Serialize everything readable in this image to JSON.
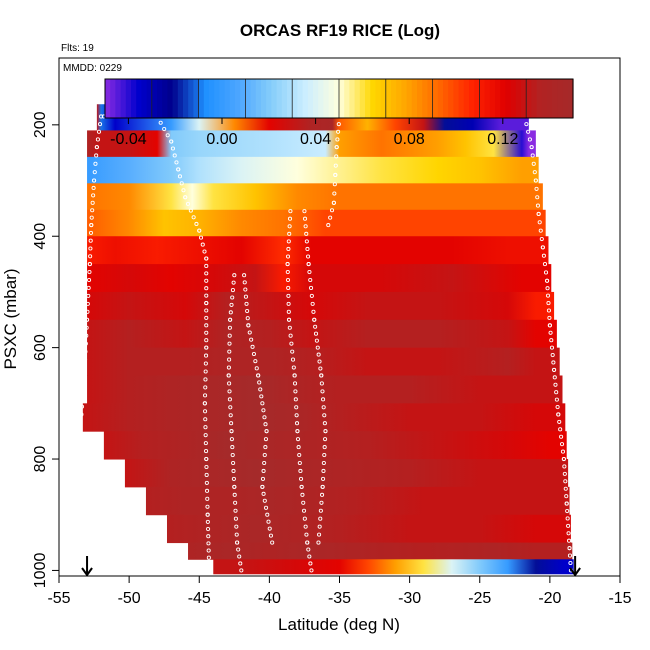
{
  "chart_data": {
    "type": "heatmap",
    "title": "ORCAS RF19 RICE (Log)",
    "flights_label": "Flts: 19",
    "date_label": "MMDD: 0229",
    "xlabel": "Latitude (deg N)",
    "ylabel": "PSXC (mbar)",
    "xlim": [
      -55,
      -15
    ],
    "ylim": [
      1010,
      80
    ],
    "x_ticks": [
      -55,
      -50,
      -45,
      -40,
      -35,
      -30,
      -25,
      -20,
      -15
    ],
    "y_ticks": [
      200,
      400,
      600,
      800,
      1000
    ],
    "colorbar": {
      "range": [
        -0.05,
        0.15
      ],
      "ticks": [
        -0.04,
        0.0,
        0.04,
        0.08,
        0.12
      ],
      "tick_labels": [
        "-0.04",
        "0.00",
        "0.04",
        "0.08",
        "0.12"
      ],
      "colors": [
        "#8a2be2",
        "#0000cd",
        "#00008b",
        "#1e90ff",
        "#4da6ff",
        "#87cefa",
        "#cceeff",
        "#ffffdd",
        "#ffd700",
        "#ffa500",
        "#ff6600",
        "#ff2200",
        "#e00000",
        "#b22222",
        "#a52a2a"
      ]
    },
    "bands": [
      {
        "p": 185,
        "x0": -52.3,
        "x1": -21.5,
        "segments": [
          [
            -52.3,
            0.13
          ],
          [
            -52.0,
            -0.01
          ],
          [
            -51.0,
            -0.035
          ],
          [
            -47.0,
            0.0
          ],
          [
            -45.0,
            0.04
          ],
          [
            -42.5,
            0.085
          ],
          [
            -40.0,
            0.12
          ],
          [
            -37.0,
            0.14
          ],
          [
            -35.5,
            0.145
          ],
          [
            -35.0,
            0.095
          ],
          [
            -33.0,
            0.075
          ],
          [
            -31.0,
            0.1
          ],
          [
            -29.0,
            0.13
          ],
          [
            -27.5,
            -0.02
          ],
          [
            -25.5,
            -0.03
          ],
          [
            -23.5,
            -0.045
          ]
        ]
      },
      {
        "p": 235,
        "x0": -53.0,
        "x1": -21.0,
        "segments": [
          [
            -53.0,
            0.14
          ],
          [
            -52.0,
            0.13
          ],
          [
            -50.0,
            0.13
          ],
          [
            -48.0,
            0.12
          ],
          [
            -47.0,
            0.02
          ],
          [
            -45.0,
            0.025
          ],
          [
            -40.0,
            0.03
          ],
          [
            -36.0,
            0.035
          ],
          [
            -35.0,
            0.08
          ],
          [
            -32.0,
            0.09
          ],
          [
            -28.0,
            0.08
          ],
          [
            -26.0,
            0.07
          ],
          [
            -24.0,
            0.06
          ],
          [
            -22.0,
            -0.04
          ],
          [
            -21.5,
            -0.05
          ]
        ]
      },
      {
        "p": 280,
        "x0": -53.0,
        "x1": -20.8,
        "segments": [
          [
            -53.0,
            0.0
          ],
          [
            -50.0,
            0.01
          ],
          [
            -47.0,
            0.02
          ],
          [
            -45.0,
            0.03
          ],
          [
            -42.0,
            0.04
          ],
          [
            -38.0,
            0.05
          ],
          [
            -35.0,
            0.055
          ],
          [
            -32.0,
            0.06
          ],
          [
            -28.0,
            0.065
          ],
          [
            -25.0,
            0.07
          ],
          [
            -22.0,
            0.08
          ]
        ]
      },
      {
        "p": 330,
        "x0": -53.0,
        "x1": -20.5,
        "segments": [
          [
            -53.0,
            0.09
          ],
          [
            -50.0,
            0.085
          ],
          [
            -47.0,
            0.06
          ],
          [
            -45.5,
            0.05
          ],
          [
            -44.0,
            0.06
          ],
          [
            -41.0,
            0.07
          ],
          [
            -38.0,
            0.085
          ],
          [
            -35.0,
            0.09
          ],
          [
            -30.0,
            0.09
          ],
          [
            -25.0,
            0.09
          ],
          [
            -21.5,
            0.09
          ]
        ]
      },
      {
        "p": 375,
        "x0": -53.0,
        "x1": -20.3,
        "segments": [
          [
            -53.0,
            0.095
          ],
          [
            -50.0,
            0.085
          ],
          [
            -47.5,
            0.07
          ],
          [
            -45.0,
            0.075
          ],
          [
            -42.0,
            0.085
          ],
          [
            -39.0,
            0.09
          ],
          [
            -36.0,
            0.1
          ],
          [
            -30.0,
            0.1
          ],
          [
            -25.0,
            0.1
          ],
          [
            -21.0,
            0.1
          ]
        ]
      },
      {
        "p": 425,
        "x0": -53.0,
        "x1": -20.1,
        "segments": [
          [
            -53.0,
            0.11
          ],
          [
            -51.0,
            0.115
          ],
          [
            -48.0,
            0.11
          ],
          [
            -45.0,
            0.115
          ],
          [
            -42.0,
            0.12
          ],
          [
            -39.0,
            0.105
          ],
          [
            -37.0,
            0.12
          ],
          [
            -32.0,
            0.12
          ],
          [
            -27.0,
            0.12
          ],
          [
            -23.0,
            0.115
          ]
        ]
      },
      {
        "p": 475,
        "x0": -53.0,
        "x1": -19.9,
        "segments": [
          [
            -53.0,
            0.12
          ],
          [
            -50.0,
            0.125
          ],
          [
            -47.0,
            0.12
          ],
          [
            -44.0,
            0.125
          ],
          [
            -41.0,
            0.13
          ],
          [
            -39.0,
            0.11
          ],
          [
            -37.0,
            0.125
          ],
          [
            -32.0,
            0.125
          ],
          [
            -27.0,
            0.13
          ],
          [
            -22.0,
            0.12
          ]
        ]
      },
      {
        "p": 525,
        "x0": -53.0,
        "x1": -19.7,
        "segments": [
          [
            -53.0,
            0.125
          ],
          [
            -50.0,
            0.13
          ],
          [
            -46.0,
            0.125
          ],
          [
            -43.0,
            0.135
          ],
          [
            -40.0,
            0.13
          ],
          [
            -37.0,
            0.125
          ],
          [
            -33.0,
            0.13
          ],
          [
            -28.0,
            0.13
          ],
          [
            -23.0,
            0.125
          ],
          [
            -21.0,
            0.11
          ]
        ]
      },
      {
        "p": 575,
        "x0": -53.0,
        "x1": -19.5,
        "segments": [
          [
            -53.0,
            0.13
          ],
          [
            -50.0,
            0.135
          ],
          [
            -46.0,
            0.13
          ],
          [
            -43.0,
            0.14
          ],
          [
            -40.0,
            0.135
          ],
          [
            -37.0,
            0.13
          ],
          [
            -33.0,
            0.135
          ],
          [
            -28.0,
            0.135
          ],
          [
            -23.0,
            0.13
          ],
          [
            -21.0,
            0.12
          ]
        ]
      },
      {
        "p": 625,
        "x0": -53.0,
        "x1": -19.3,
        "segments": [
          [
            -53.0,
            0.13
          ],
          [
            -50.0,
            0.135
          ],
          [
            -46.0,
            0.135
          ],
          [
            -43.0,
            0.14
          ],
          [
            -40.0,
            0.14
          ],
          [
            -37.0,
            0.135
          ],
          [
            -33.0,
            0.13
          ],
          [
            -28.0,
            0.13
          ],
          [
            -23.0,
            0.135
          ],
          [
            -21.0,
            0.13
          ]
        ]
      },
      {
        "p": 675,
        "x0": -53.0,
        "x1": -19.1,
        "segments": [
          [
            -53.0,
            0.13
          ],
          [
            -50.0,
            0.135
          ],
          [
            -47.0,
            0.14
          ],
          [
            -44.0,
            0.145
          ],
          [
            -41.0,
            0.15
          ],
          [
            -38.0,
            0.14
          ],
          [
            -35.0,
            0.135
          ],
          [
            -30.0,
            0.135
          ],
          [
            -25.0,
            0.13
          ],
          [
            -21.0,
            0.13
          ]
        ]
      },
      {
        "p": 725,
        "x0": -53.3,
        "x1": -18.9,
        "segments": [
          [
            -53.3,
            0.13
          ],
          [
            -50.0,
            0.135
          ],
          [
            -47.0,
            0.14
          ],
          [
            -44.0,
            0.145
          ],
          [
            -41.0,
            0.15
          ],
          [
            -38.0,
            0.145
          ],
          [
            -35.0,
            0.135
          ],
          [
            -30.0,
            0.13
          ],
          [
            -25.0,
            0.13
          ],
          [
            -21.0,
            0.125
          ]
        ]
      },
      {
        "p": 775,
        "x0": -51.8,
        "x1": -18.8,
        "segments": [
          [
            -51.8,
            0.13
          ],
          [
            -49.0,
            0.135
          ],
          [
            -46.0,
            0.14
          ],
          [
            -43.0,
            0.15
          ],
          [
            -40.0,
            0.145
          ],
          [
            -37.0,
            0.14
          ],
          [
            -33.0,
            0.135
          ],
          [
            -28.0,
            0.13
          ],
          [
            -23.0,
            0.125
          ],
          [
            -20.0,
            0.12
          ]
        ]
      },
      {
        "p": 825,
        "x0": -50.3,
        "x1": -18.7,
        "segments": [
          [
            -50.3,
            0.13
          ],
          [
            -47.0,
            0.14
          ],
          [
            -44.0,
            0.145
          ],
          [
            -41.0,
            0.15
          ],
          [
            -38.0,
            0.145
          ],
          [
            -35.0,
            0.14
          ],
          [
            -30.0,
            0.135
          ],
          [
            -25.0,
            0.13
          ],
          [
            -21.0,
            0.13
          ]
        ]
      },
      {
        "p": 875,
        "x0": -48.8,
        "x1": -18.6,
        "segments": [
          [
            -48.8,
            0.135
          ],
          [
            -46.0,
            0.14
          ],
          [
            -43.0,
            0.14
          ],
          [
            -40.0,
            0.145
          ],
          [
            -37.0,
            0.14
          ],
          [
            -34.0,
            0.135
          ],
          [
            -29.0,
            0.13
          ],
          [
            -24.0,
            0.13
          ],
          [
            -21.0,
            0.13
          ]
        ]
      },
      {
        "p": 925,
        "x0": -47.3,
        "x1": -18.5,
        "segments": [
          [
            -47.3,
            0.135
          ],
          [
            -44.0,
            0.14
          ],
          [
            -41.0,
            0.145
          ],
          [
            -38.0,
            0.14
          ],
          [
            -35.0,
            0.135
          ],
          [
            -30.0,
            0.13
          ],
          [
            -25.0,
            0.13
          ],
          [
            -21.0,
            0.125
          ]
        ]
      },
      {
        "p": 975,
        "x0": -45.8,
        "x1": -18.4,
        "segments": [
          [
            -45.8,
            0.14
          ],
          [
            -43.0,
            0.145
          ],
          [
            -40.0,
            0.14
          ],
          [
            -37.0,
            0.145
          ],
          [
            -34.0,
            0.14
          ],
          [
            -29.0,
            0.135
          ],
          [
            -24.0,
            0.14
          ],
          [
            -21.0,
            0.135
          ]
        ]
      },
      {
        "p": 985,
        "x0": -44.0,
        "x1": -18.3,
        "segments": [
          [
            -44.0,
            0.13
          ],
          [
            -42.0,
            0.13
          ],
          [
            -38.0,
            0.125
          ],
          [
            -35.0,
            0.12
          ],
          [
            -33.0,
            0.1
          ],
          [
            -31.0,
            0.08
          ],
          [
            -29.0,
            0.06
          ],
          [
            -27.0,
            0.04
          ],
          [
            -25.0,
            0.02
          ],
          [
            -23.0,
            0.0
          ],
          [
            -21.0,
            -0.02
          ],
          [
            -19.0,
            -0.035
          ]
        ]
      }
    ],
    "flight_tracks": [
      {
        "name": "left-descent",
        "points": [
          [
            -52.0,
            185
          ],
          [
            -52.3,
            240
          ],
          [
            -52.5,
            300
          ],
          [
            -52.7,
            380
          ],
          [
            -52.8,
            450
          ],
          [
            -53.0,
            550
          ],
          [
            -53.2,
            650
          ],
          [
            -53.4,
            720
          ]
        ]
      },
      {
        "name": "left-upper-track",
        "points": [
          [
            -51.8,
            185
          ],
          [
            -48.0,
            185
          ],
          [
            -47.0,
            230
          ],
          [
            -46.5,
            280
          ],
          [
            -46.0,
            330
          ],
          [
            -45.0,
            390
          ],
          [
            -44.5,
            440
          ],
          [
            -44.5,
            520
          ],
          [
            -44.5,
            600
          ],
          [
            -44.6,
            700
          ],
          [
            -44.5,
            800
          ],
          [
            -44.4,
            900
          ],
          [
            -44.3,
            990
          ]
        ]
      },
      {
        "name": "middle-track-1",
        "points": [
          [
            -42.5,
            470
          ],
          [
            -42.8,
            550
          ],
          [
            -42.9,
            650
          ],
          [
            -42.7,
            750
          ],
          [
            -42.5,
            850
          ],
          [
            -42.3,
            950
          ],
          [
            -42.0,
            1000
          ]
        ]
      },
      {
        "name": "middle-track-2",
        "points": [
          [
            -41.8,
            470
          ],
          [
            -41.5,
            560
          ],
          [
            -40.8,
            650
          ],
          [
            -40.2,
            750
          ],
          [
            -40.5,
            850
          ],
          [
            -39.8,
            950
          ]
        ]
      },
      {
        "name": "middle-track-3",
        "points": [
          [
            -38.5,
            355
          ],
          [
            -38.7,
            450
          ],
          [
            -38.6,
            550
          ],
          [
            -38.2,
            650
          ],
          [
            -38.0,
            750
          ],
          [
            -37.7,
            850
          ],
          [
            -37.3,
            950
          ],
          [
            -37.0,
            1000
          ]
        ]
      },
      {
        "name": "middle-track-4",
        "points": [
          [
            -37.5,
            355
          ],
          [
            -37.2,
            450
          ],
          [
            -36.8,
            550
          ],
          [
            -36.3,
            650
          ],
          [
            -36.0,
            750
          ],
          [
            -36.2,
            850
          ],
          [
            -36.5,
            950
          ]
        ]
      },
      {
        "name": "right-upper-track",
        "points": [
          [
            -35.0,
            185
          ],
          [
            -21.8,
            185
          ],
          [
            -21.3,
            240
          ],
          [
            -21.0,
            300
          ],
          [
            -20.8,
            360
          ],
          [
            -20.5,
            420
          ],
          [
            -20.2,
            480
          ],
          [
            -20.0,
            560
          ],
          [
            -19.7,
            640
          ],
          [
            -19.4,
            720
          ],
          [
            -19.0,
            800
          ],
          [
            -18.8,
            880
          ],
          [
            -18.6,
            960
          ],
          [
            -18.5,
            1000
          ]
        ]
      },
      {
        "name": "mid-descent",
        "points": [
          [
            -35.0,
            185
          ],
          [
            -35.2,
            240
          ],
          [
            -35.3,
            290
          ],
          [
            -35.4,
            340
          ],
          [
            -35.8,
            380
          ]
        ]
      }
    ],
    "markers": [
      {
        "label": "down-arrow-left",
        "x": -53.0
      },
      {
        "label": "down-arrow-right",
        "x": -18.2
      }
    ]
  }
}
